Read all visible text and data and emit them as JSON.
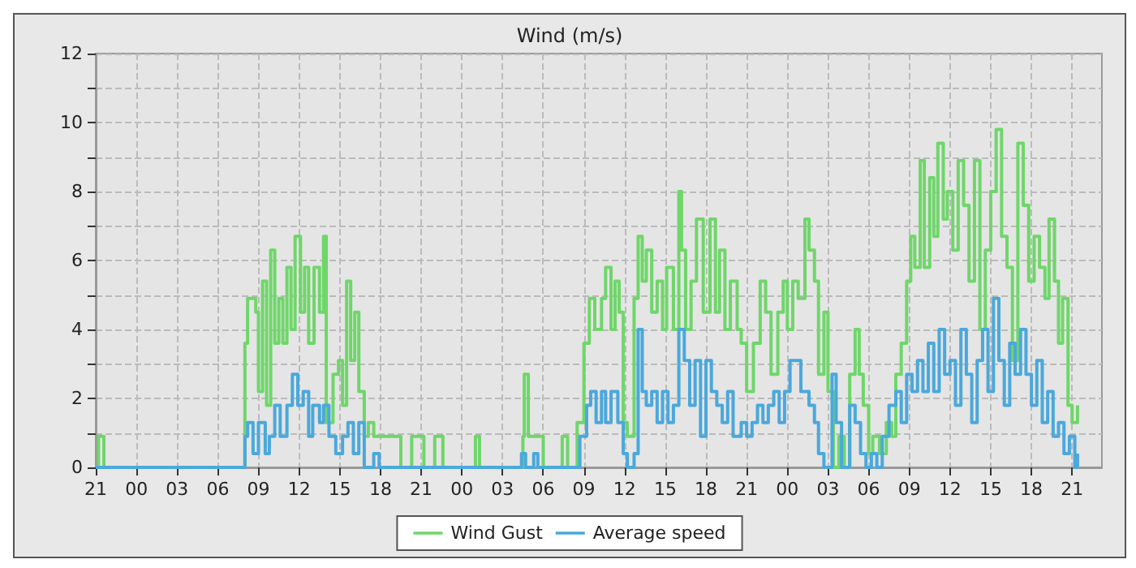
{
  "chart_data": {
    "type": "step",
    "title": "Wind (m/s)",
    "xlim": [
      "--01-01T21:00",
      "--01-04T23:12"
    ],
    "ylim": [
      0,
      12
    ],
    "xticks": [
      {
        "value": "--01-01T21:00",
        "label": "21"
      },
      {
        "value": "--01-02T00:00",
        "label": "00"
      },
      {
        "value": "--01-02T03:00",
        "label": "03"
      },
      {
        "value": "--01-02T06:00",
        "label": "06"
      },
      {
        "value": "--01-02T09:00",
        "label": "09"
      },
      {
        "value": "--01-02T12:00",
        "label": "12"
      },
      {
        "value": "--01-02T15:00",
        "label": "15"
      },
      {
        "value": "--01-02T18:00",
        "label": "18"
      },
      {
        "value": "--01-02T21:00",
        "label": "21"
      },
      {
        "value": "--01-03T00:00",
        "label": "00"
      },
      {
        "value": "--01-03T03:00",
        "label": "03"
      },
      {
        "value": "--01-03T06:00",
        "label": "06"
      },
      {
        "value": "--01-03T09:00",
        "label": "09"
      },
      {
        "value": "--01-03T12:00",
        "label": "12"
      },
      {
        "value": "--01-03T15:00",
        "label": "15"
      },
      {
        "value": "--01-03T18:00",
        "label": "18"
      },
      {
        "value": "--01-03T21:00",
        "label": "21"
      },
      {
        "value": "--01-04T00:00",
        "label": "00"
      },
      {
        "value": "--01-04T03:00",
        "label": "03"
      },
      {
        "value": "--01-04T06:00",
        "label": "06"
      },
      {
        "value": "--01-04T09:00",
        "label": "09"
      },
      {
        "value": "--01-04T12:00",
        "label": "12"
      },
      {
        "value": "--01-04T15:00",
        "label": "15"
      },
      {
        "value": "--01-04T18:00",
        "label": "18"
      },
      {
        "value": "--01-04T21:00",
        "label": "21"
      }
    ],
    "yticks": [
      0,
      {
        "value": 1,
        "label": null
      },
      2,
      {
        "value": 3,
        "label": null
      },
      4,
      {
        "value": 5,
        "label": null
      },
      6,
      {
        "value": 7,
        "label": null
      },
      8,
      {
        "value": 9,
        "label": null
      },
      10,
      {
        "value": 11,
        "label": null
      },
      12
    ],
    "grid": true,
    "legend": "bottom",
    "marker": "none",
    "line_style": "solid",
    "series": [
      {
        "name": "Wind Gust",
        "color": "#6fd66a",
        "x": [
          "--01-01T21:00",
          "--01-01T21:12",
          "--01-01T21:36",
          "--01-02T08:00",
          "--01-02T08:12",
          "--01-02T08:48",
          "--01-02T09:00",
          "--01-02T09:18",
          "--01-02T09:36",
          "--01-02T09:54",
          "--01-02T10:12",
          "--01-02T10:30",
          "--01-02T10:48",
          "--01-02T11:06",
          "--01-02T11:24",
          "--01-02T11:42",
          "--01-02T12:06",
          "--01-02T12:24",
          "--01-02T12:42",
          "--01-02T13:06",
          "--01-02T13:30",
          "--01-02T13:48",
          "--01-02T14:00",
          "--01-02T14:30",
          "--01-02T14:54",
          "--01-02T15:12",
          "--01-02T15:30",
          "--01-02T15:48",
          "--01-02T16:06",
          "--01-02T16:24",
          "--01-02T16:48",
          "--01-02T17:06",
          "--01-02T17:30",
          "--01-02T19:30",
          "--01-02T20:18",
          "--01-02T21:12",
          "--01-02T22:00",
          "--01-02T22:36",
          "--01-03T01:00",
          "--01-03T01:18",
          "--01-03T04:30",
          "--01-03T04:36",
          "--01-03T04:54",
          "--01-03T06:00",
          "--01-03T07:24",
          "--01-03T07:48",
          "--01-03T08:30",
          "--01-03T09:00",
          "--01-03T09:24",
          "--01-03T09:48",
          "--01-03T10:18",
          "--01-03T10:36",
          "--01-03T11:00",
          "--01-03T11:18",
          "--01-03T11:36",
          "--01-03T11:54",
          "--01-03T12:12",
          "--01-03T12:42",
          "--01-03T13:00",
          "--01-03T13:18",
          "--01-03T13:36",
          "--01-03T14:00",
          "--01-03T14:24",
          "--01-03T14:48",
          "--01-03T15:06",
          "--01-03T15:36",
          "--01-03T16:00",
          "--01-03T16:12",
          "--01-03T16:30",
          "--01-03T16:54",
          "--01-03T17:18",
          "--01-03T17:48",
          "--01-03T18:18",
          "--01-03T18:42",
          "--01-03T19:00",
          "--01-03T19:24",
          "--01-03T19:48",
          "--01-03T20:18",
          "--01-03T20:36",
          "--01-03T21:00",
          "--01-03T21:30",
          "--01-03T22:00",
          "--01-03T22:24",
          "--01-03T22:48",
          "--01-03T23:18",
          "--01-03T23:42",
          "--01-04T00:00",
          "--01-04T00:24",
          "--01-04T00:48",
          "--01-04T01:18",
          "--01-04T01:36",
          "--01-04T02:00",
          "--01-04T02:18",
          "--01-04T02:42",
          "--01-04T03:00",
          "--01-04T03:24",
          "--01-04T03:48",
          "--01-04T04:12",
          "--01-04T04:36",
          "--01-04T05:00",
          "--01-04T05:18",
          "--01-04T05:36",
          "--01-04T06:00",
          "--01-04T06:18",
          "--01-04T06:48",
          "--01-04T07:18",
          "--01-04T07:42",
          "--01-04T08:00",
          "--01-04T08:24",
          "--01-04T08:48",
          "--01-04T09:06",
          "--01-04T09:24",
          "--01-04T09:48",
          "--01-04T10:06",
          "--01-04T10:30",
          "--01-04T10:48",
          "--01-04T11:06",
          "--01-04T11:30",
          "--01-04T11:48",
          "--01-04T12:12",
          "--01-04T12:36",
          "--01-04T13:00",
          "--01-04T13:24",
          "--01-04T13:48",
          "--01-04T14:12",
          "--01-04T14:36",
          "--01-04T15:00",
          "--01-04T15:24",
          "--01-04T15:48",
          "--01-04T16:12",
          "--01-04T16:36",
          "--01-04T17:00",
          "--01-04T17:24",
          "--01-04T17:48",
          "--01-04T18:12",
          "--01-04T18:36",
          "--01-04T19:00",
          "--01-04T19:18",
          "--01-04T19:42",
          "--01-04T20:00",
          "--01-04T20:18",
          "--01-04T20:42",
          "--01-04T21:00",
          "--01-04T21:24"
        ],
        "values": [
          0,
          0.9,
          0,
          3.6,
          4.9,
          4.5,
          2.2,
          5.4,
          1.8,
          6.3,
          3.6,
          4.9,
          3.6,
          5.8,
          4.0,
          6.7,
          4.5,
          5.8,
          3.6,
          5.8,
          4.5,
          6.7,
          1.3,
          2.7,
          3.1,
          1.8,
          5.4,
          3.1,
          4.5,
          2.2,
          0.9,
          1.3,
          0.9,
          0,
          0.9,
          0,
          0.9,
          0,
          0.9,
          0,
          0.9,
          2.7,
          0.9,
          0,
          0.9,
          0,
          1.3,
          3.6,
          4.9,
          4.0,
          4.9,
          5.8,
          4.0,
          5.4,
          4.5,
          1.3,
          0.9,
          4.9,
          6.7,
          5.4,
          6.3,
          4.5,
          5.4,
          4.0,
          5.8,
          4.0,
          8.0,
          6.3,
          4.0,
          5.4,
          7.2,
          4.5,
          7.2,
          4.5,
          6.3,
          4.0,
          5.4,
          4.0,
          3.6,
          2.2,
          3.6,
          5.4,
          4.5,
          2.7,
          4.5,
          5.4,
          4.0,
          5.4,
          4.9,
          7.2,
          6.3,
          5.4,
          2.7,
          4.5,
          2.2,
          0,
          0.9,
          0,
          2.7,
          4.0,
          2.7,
          1.8,
          0.4,
          0.9,
          0.4,
          1.3,
          0.9,
          2.7,
          3.6,
          5.4,
          6.7,
          5.8,
          8.9,
          5.8,
          8.4,
          6.7,
          9.4,
          7.2,
          8.0,
          6.3,
          8.9,
          7.6,
          5.4,
          8.9,
          4.0,
          6.3,
          8.0,
          9.8,
          6.7,
          5.8,
          3.1,
          9.4,
          7.6,
          5.4,
          6.7,
          5.8,
          4.9,
          7.2,
          5.4,
          3.6,
          4.9,
          1.8,
          1.3,
          1.8
        ]
      },
      {
        "name": "Average speed",
        "color": "#4aa8dc",
        "x": [
          "--01-01T21:00",
          "--01-02T08:00",
          "--01-02T08:12",
          "--01-02T08:36",
          "--01-02T09:00",
          "--01-02T09:30",
          "--01-02T09:48",
          "--01-02T10:12",
          "--01-02T10:36",
          "--01-02T11:06",
          "--01-02T11:30",
          "--01-02T11:54",
          "--01-02T12:18",
          "--01-02T12:42",
          "--01-02T13:00",
          "--01-02T13:30",
          "--01-02T13:48",
          "--01-02T14:12",
          "--01-02T14:42",
          "--01-02T15:12",
          "--01-02T15:36",
          "--01-02T16:00",
          "--01-02T16:24",
          "--01-02T16:48",
          "--01-02T17:30",
          "--01-02T17:54",
          "--01-03T04:24",
          "--01-03T04:42",
          "--01-03T05:18",
          "--01-03T05:36",
          "--01-03T08:42",
          "--01-03T09:12",
          "--01-03T09:30",
          "--01-03T09:54",
          "--01-03T10:18",
          "--01-03T10:36",
          "--01-03T11:00",
          "--01-03T11:30",
          "--01-03T11:54",
          "--01-03T12:12",
          "--01-03T12:42",
          "--01-03T13:00",
          "--01-03T13:18",
          "--01-03T13:36",
          "--01-03T14:00",
          "--01-03T14:24",
          "--01-03T14:48",
          "--01-03T15:12",
          "--01-03T15:36",
          "--01-03T16:00",
          "--01-03T16:24",
          "--01-03T16:48",
          "--01-03T17:12",
          "--01-03T17:36",
          "--01-03T18:00",
          "--01-03T18:24",
          "--01-03T18:48",
          "--01-03T19:12",
          "--01-03T19:36",
          "--01-03T20:00",
          "--01-03T20:36",
          "--01-03T21:00",
          "--01-03T21:24",
          "--01-03T21:48",
          "--01-03T22:12",
          "--01-03T22:36",
          "--01-03T23:00",
          "--01-03T23:24",
          "--01-03T23:48",
          "--01-04T00:12",
          "--01-04T00:36",
          "--01-04T01:00",
          "--01-04T01:36",
          "--01-04T02:00",
          "--01-04T02:18",
          "--01-04T02:42",
          "--01-04T03:18",
          "--01-04T03:36",
          "--01-04T04:00",
          "--01-04T04:36",
          "--01-04T05:00",
          "--01-04T05:24",
          "--01-04T05:48",
          "--01-04T06:12",
          "--01-04T06:36",
          "--01-04T07:00",
          "--01-04T07:30",
          "--01-04T08:00",
          "--01-04T08:24",
          "--01-04T08:48",
          "--01-04T09:12",
          "--01-04T09:36",
          "--01-04T10:00",
          "--01-04T10:24",
          "--01-04T10:48",
          "--01-04T11:12",
          "--01-04T11:36",
          "--01-04T12:00",
          "--01-04T12:24",
          "--01-04T12:48",
          "--01-04T13:12",
          "--01-04T13:36",
          "--01-04T14:00",
          "--01-04T14:24",
          "--01-04T14:48",
          "--01-04T15:12",
          "--01-04T15:36",
          "--01-04T16:00",
          "--01-04T16:24",
          "--01-04T16:48",
          "--01-04T17:12",
          "--01-04T17:36",
          "--01-04T18:00",
          "--01-04T18:24",
          "--01-04T18:48",
          "--01-04T19:12",
          "--01-04T19:36",
          "--01-04T20:00",
          "--01-04T20:24",
          "--01-04T20:48",
          "--01-04T21:12",
          "--01-04T21:24"
        ],
        "values": [
          0,
          0.9,
          1.3,
          0.4,
          1.3,
          0.4,
          0.9,
          1.8,
          0.9,
          1.8,
          2.7,
          1.8,
          2.2,
          0.9,
          1.8,
          1.3,
          1.8,
          0.9,
          0.4,
          0.9,
          1.3,
          0.4,
          1.3,
          0,
          0.4,
          0,
          0.4,
          0,
          0.4,
          0,
          0.9,
          1.8,
          2.2,
          1.3,
          2.2,
          1.3,
          2.2,
          1.3,
          0.4,
          0,
          0.4,
          4.0,
          2.2,
          1.8,
          2.2,
          1.3,
          2.2,
          1.3,
          1.8,
          4.0,
          3.1,
          1.8,
          3.1,
          0.9,
          3.1,
          2.2,
          1.8,
          1.3,
          2.2,
          0.9,
          1.3,
          0.9,
          1.3,
          1.8,
          1.3,
          1.8,
          2.2,
          1.3,
          2.2,
          3.1,
          3.1,
          2.2,
          1.8,
          1.3,
          0.4,
          0,
          2.7,
          1.3,
          0,
          1.8,
          1.3,
          0.4,
          0,
          0.4,
          0,
          0.9,
          1.8,
          2.2,
          1.3,
          2.7,
          2.2,
          3.1,
          2.2,
          3.6,
          2.2,
          4.0,
          2.7,
          3.1,
          1.8,
          4.0,
          2.7,
          1.3,
          3.1,
          4.0,
          2.2,
          4.9,
          3.1,
          1.8,
          3.6,
          2.7,
          4.0,
          2.7,
          1.8,
          3.1,
          1.3,
          2.2,
          0.9,
          1.3,
          0.4,
          0.9,
          0,
          0.4
        ]
      }
    ]
  }
}
